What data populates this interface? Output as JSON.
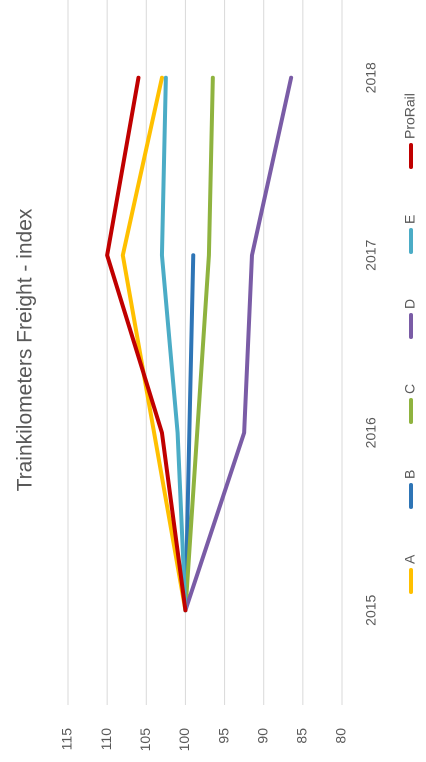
{
  "chart_data": {
    "type": "line",
    "title": "Trainkilometers Freight - index",
    "categories": [
      "2015",
      "2016",
      "2017",
      "2018"
    ],
    "series": [
      {
        "name": "A",
        "color": "#ffc000",
        "values": [
          100,
          104,
          108,
          103
        ]
      },
      {
        "name": "B",
        "color": "#2e75b6",
        "values": [
          100,
          99.5,
          99,
          null
        ]
      },
      {
        "name": "C",
        "color": "#8fb33f",
        "values": [
          100,
          98.5,
          97,
          96.5
        ]
      },
      {
        "name": "D",
        "color": "#7a5ca6",
        "values": [
          100,
          92.5,
          91.5,
          86.5
        ]
      },
      {
        "name": "E",
        "color": "#4bacc6",
        "values": [
          100,
          101,
          103,
          102.5
        ]
      },
      {
        "name": "ProRail",
        "color": "#c00000",
        "values": [
          100,
          103,
          110,
          106
        ]
      }
    ],
    "ylim": [
      80,
      115
    ],
    "yticks": [
      80,
      85,
      90,
      95,
      100,
      105,
      110,
      115
    ],
    "grid": true
  }
}
